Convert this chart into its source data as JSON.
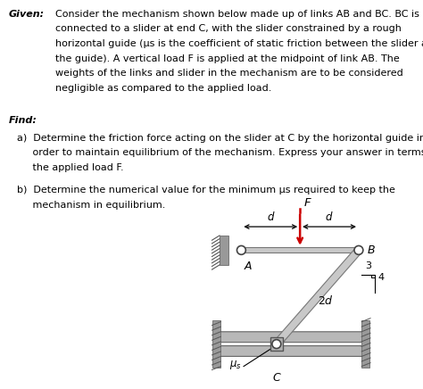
{
  "bg_color": "#ffffff",
  "given_label": "Given:",
  "given_body": "  Consider the mechanism shown below made up of links AB and BC. BC is\n  connected to a slider at end C, with the slider constrained by a rough\n  horizontal guide (μs is the coefficient of static friction between the slider and\n  the guide). A vertical load F is applied at the midpoint of link AB. The\n  weights of the links and slider in the mechanism are to be considered\n  negligible as compared to the applied load.",
  "find_label": "Find:",
  "find_a": "a)  Determine the friction force acting on the slider at C by the horizontal guide in\n     order to maintain equilibrium of the mechanism. Express your answer in terms of\n     the applied load F.",
  "find_b": "b)  Determine the numerical value for the minimum μs required to keep the\n     mechanism in equilibrium.",
  "link_color": "#c8c8c8",
  "link_edge": "#777777",
  "wall_color": "#999999",
  "wall_hatch": "#555555",
  "rail_color": "#b8b8b8",
  "rail_edge": "#666666",
  "slider_color": "#aaaaaa",
  "pin_color": "#ffffff",
  "pin_edge": "#444444",
  "force_color": "#cc0000",
  "arrow_color": "#000000",
  "A": [
    0.0,
    0.0
  ],
  "B": [
    2.0,
    0.0
  ],
  "C": [
    0.6,
    -1.6
  ],
  "midAB": [
    1.0,
    0.0
  ]
}
